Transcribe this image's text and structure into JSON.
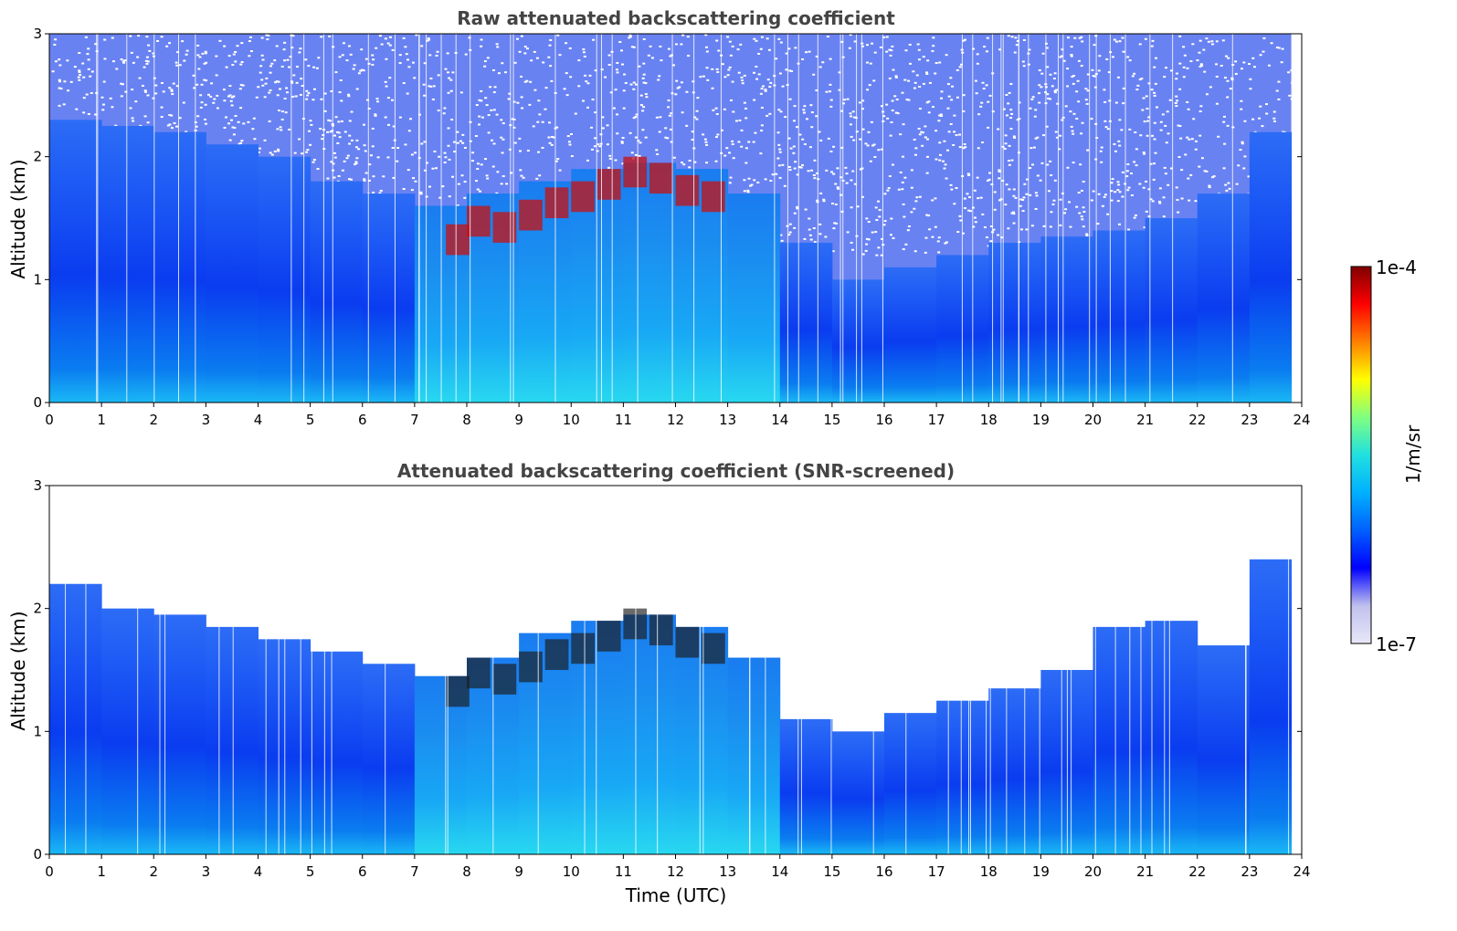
{
  "chart_data": [
    {
      "type": "heatmap",
      "title": "Raw attenuated backscattering coefficient",
      "xlabel": "",
      "ylabel": "Altitude (km)",
      "xlim": [
        0,
        24
      ],
      "ylim": [
        0,
        3
      ],
      "x_ticks": [
        "0",
        "1",
        "2",
        "3",
        "4",
        "5",
        "6",
        "7",
        "8",
        "9",
        "10",
        "11",
        "12",
        "13",
        "14",
        "15",
        "16",
        "17",
        "18",
        "19",
        "20",
        "21",
        "22",
        "23",
        "24"
      ],
      "y_ticks": [
        "0",
        "1",
        "2",
        "3"
      ],
      "x_hours": [
        0,
        1,
        2,
        3,
        4,
        5,
        6,
        7,
        8,
        9,
        10,
        11,
        12,
        13,
        14,
        15,
        16,
        17,
        18,
        19,
        20,
        21,
        22,
        23
      ],
      "top_of_signal_km": [
        2.3,
        2.25,
        2.2,
        2.1,
        2.0,
        1.8,
        1.7,
        1.6,
        1.7,
        1.8,
        1.9,
        1.95,
        1.9,
        1.7,
        1.3,
        1.0,
        1.1,
        1.2,
        1.3,
        1.35,
        1.4,
        1.5,
        1.7,
        2.2
      ],
      "data_end_hour": 23.8,
      "screened": false
    },
    {
      "type": "heatmap",
      "title": "Attenuated backscattering coefficient (SNR-screened)",
      "xlabel": "Time (UTC)",
      "ylabel": "Altitude (km)",
      "xlim": [
        0,
        24
      ],
      "ylim": [
        0,
        3
      ],
      "x_ticks": [
        "0",
        "1",
        "2",
        "3",
        "4",
        "5",
        "6",
        "7",
        "8",
        "9",
        "10",
        "11",
        "12",
        "13",
        "14",
        "15",
        "16",
        "17",
        "18",
        "19",
        "20",
        "21",
        "22",
        "23",
        "24"
      ],
      "y_ticks": [
        "0",
        "1",
        "2",
        "3"
      ],
      "x_hours": [
        0,
        1,
        2,
        3,
        4,
        5,
        6,
        7,
        8,
        9,
        10,
        11,
        12,
        13,
        14,
        15,
        16,
        17,
        18,
        19,
        20,
        21,
        22,
        23
      ],
      "top_of_signal_km": [
        2.2,
        2.0,
        1.95,
        1.85,
        1.75,
        1.65,
        1.55,
        1.45,
        1.6,
        1.8,
        1.9,
        1.95,
        1.85,
        1.6,
        1.1,
        1.0,
        1.15,
        1.25,
        1.35,
        1.5,
        1.85,
        1.9,
        1.7,
        2.4
      ],
      "data_end_hour": 23.8,
      "screened": true
    }
  ],
  "colorbar": {
    "label": "1/m/sr",
    "max_label": "1e-4",
    "min_label": "1e-7",
    "scale": "log",
    "colormap": "jet",
    "colors": [
      "#e8e8f8",
      "#c0c0ee",
      "#0000ff",
      "#0060ff",
      "#00b0ff",
      "#20e0e0",
      "#80ff80",
      "#ffff00",
      "#ff8000",
      "#ff0000",
      "#800000"
    ]
  }
}
